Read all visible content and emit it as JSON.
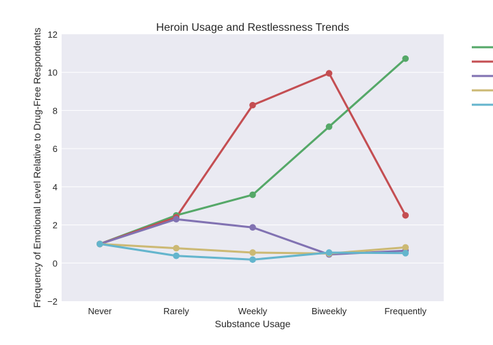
{
  "chart_data": {
    "type": "line",
    "title": "Heroin Usage and Restlessness Trends",
    "xlabel": "Substance Usage",
    "ylabel": "Frequency of Emotional Level Relative to Drug-Free Respondents",
    "categories": [
      "Never",
      "Rarely",
      "Weekly",
      "Biweekly",
      "Frequently"
    ],
    "ylim": [
      -2,
      12
    ],
    "yticks": [
      -2,
      0,
      2,
      4,
      6,
      8,
      10,
      12
    ],
    "grid": true,
    "legend_position": "right",
    "series": [
      {
        "color": "#55a868",
        "values": [
          1.0,
          2.5,
          3.58,
          7.15,
          10.72
        ]
      },
      {
        "color": "#c44e52",
        "values": [
          1.0,
          2.4,
          8.28,
          9.95,
          2.5
        ]
      },
      {
        "color": "#8172b2",
        "values": [
          1.0,
          2.3,
          1.87,
          0.45,
          0.65
        ]
      },
      {
        "color": "#ccb974",
        "values": [
          1.0,
          0.78,
          0.55,
          0.5,
          0.82
        ]
      },
      {
        "color": "#64b5cd",
        "values": [
          1.0,
          0.38,
          0.18,
          0.55,
          0.52
        ]
      }
    ]
  }
}
